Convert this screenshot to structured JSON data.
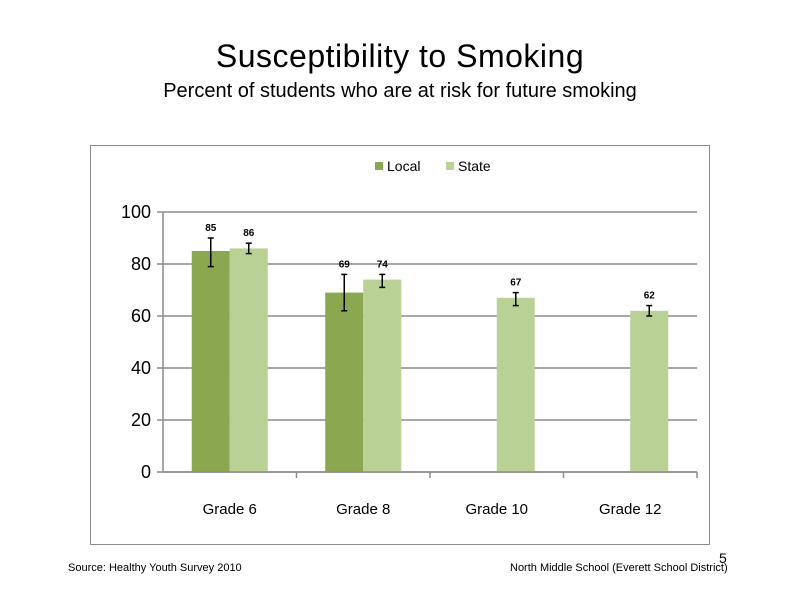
{
  "slide": {
    "title": "Susceptibility  to  Smoking",
    "subtitle": "Percent  of students  who are at risk for future  smoking",
    "source": "Source: Healthy Youth Survey 2010",
    "school": "North Middle  School (Everett School District)",
    "page_number": "5"
  },
  "chart_data": {
    "type": "bar",
    "categories": [
      "Grade 6",
      "Grade 8",
      "Grade 10",
      "Grade 12"
    ],
    "series": [
      {
        "name": "Local",
        "color": "#8aa84f",
        "values": [
          85,
          69,
          null,
          null
        ],
        "labels": [
          "85",
          "69",
          "",
          ""
        ],
        "error_low": [
          79,
          62,
          null,
          null
        ],
        "error_high": [
          90,
          76,
          null,
          null
        ]
      },
      {
        "name": "State",
        "color": "#bad195",
        "values": [
          86,
          74,
          67,
          62
        ],
        "labels": [
          "86",
          "74",
          "67",
          "62"
        ],
        "error_low": [
          84,
          71,
          64,
          60
        ],
        "error_high": [
          88,
          76,
          69,
          64
        ]
      }
    ],
    "ylim": [
      0,
      100
    ],
    "yticks": [
      "0",
      "20",
      "40",
      "60",
      "80",
      "100"
    ],
    "ytick_values": [
      0,
      20,
      40,
      60,
      80,
      100
    ],
    "grid": true,
    "legend_position": "top"
  }
}
